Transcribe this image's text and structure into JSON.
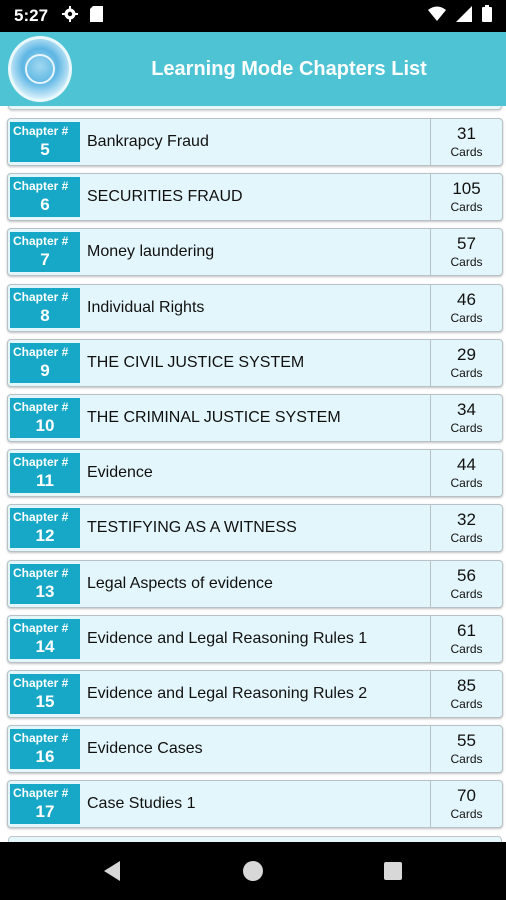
{
  "status_bar": {
    "time": "5:27",
    "icons": [
      "gear-icon",
      "sd-card-icon",
      "wifi-icon",
      "signal-icon",
      "battery-icon"
    ]
  },
  "app_bar": {
    "title": "Learning Mode Chapters List",
    "background": "#4dc3d4"
  },
  "colors": {
    "chapter_badge": "#16a8c6",
    "row_background": "#e3f6fb"
  },
  "chapters": [
    {
      "label": "Chapter #",
      "number": "5",
      "title": "Bankrapcy Fraud",
      "count": "31",
      "unit": "Cards"
    },
    {
      "label": "Chapter #",
      "number": "6",
      "title": "SECURITIES FRAUD",
      "count": "105",
      "unit": "Cards"
    },
    {
      "label": "Chapter #",
      "number": "7",
      "title": "Money laundering",
      "count": "57",
      "unit": "Cards"
    },
    {
      "label": "Chapter #",
      "number": "8",
      "title": "Individual Rights",
      "count": "46",
      "unit": "Cards"
    },
    {
      "label": "Chapter #",
      "number": "9",
      "title": "THE CIVIL JUSTICE SYSTEM",
      "count": "29",
      "unit": "Cards"
    },
    {
      "label": "Chapter #",
      "number": "10",
      "title": "THE CRIMINAL JUSTICE SYSTEM",
      "count": "34",
      "unit": "Cards"
    },
    {
      "label": "Chapter #",
      "number": "11",
      "title": "Evidence",
      "count": "44",
      "unit": "Cards"
    },
    {
      "label": "Chapter #",
      "number": "12",
      "title": "TESTIFYING AS A WITNESS",
      "count": "32",
      "unit": "Cards"
    },
    {
      "label": "Chapter #",
      "number": "13",
      "title": "Legal Aspects of evidence",
      "count": "56",
      "unit": "Cards"
    },
    {
      "label": "Chapter #",
      "number": "14",
      "title": "Evidence and Legal Reasoning Rules 1",
      "count": "61",
      "unit": "Cards"
    },
    {
      "label": "Chapter #",
      "number": "15",
      "title": "Evidence and Legal Reasoning Rules 2",
      "count": "85",
      "unit": "Cards"
    },
    {
      "label": "Chapter #",
      "number": "16",
      "title": "Evidence Cases",
      "count": "55",
      "unit": "Cards"
    },
    {
      "label": "Chapter #",
      "number": "17",
      "title": "Case Studies 1",
      "count": "70",
      "unit": "Cards"
    }
  ]
}
